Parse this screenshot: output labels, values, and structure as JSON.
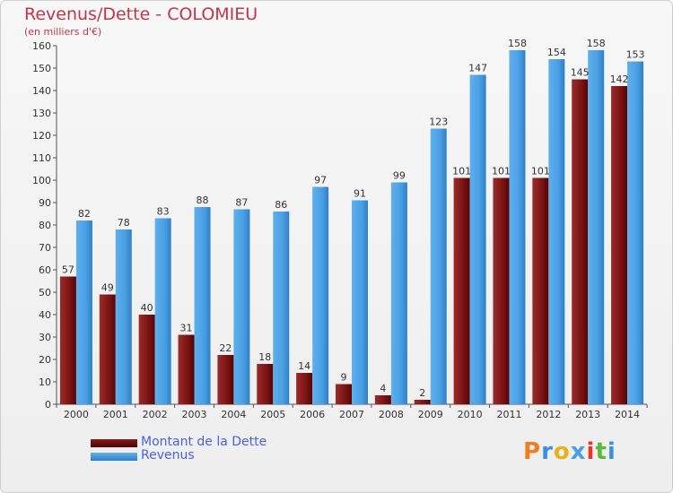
{
  "header": {
    "title": "Revenus/Dette - COLOMIEU",
    "subtitle": "(en milliers d'€)"
  },
  "legend": {
    "debt_label": "Montant de la Dette",
    "revenue_label": "Revenus"
  },
  "logo": {
    "text": "Proxiti",
    "colors": [
      "#f07c1e",
      "#3d8fe0",
      "#e8b01a",
      "#4a9ee8",
      "#e23a2a",
      "#5cb83a",
      "#3d8fe0"
    ]
  },
  "colors": {
    "debt": "#8b1a1a",
    "debt_dark": "#5a0606",
    "revenue": "#4fa3e6",
    "revenue_dark": "#2e7fc4",
    "axis_text": "#333333",
    "title": "#c2334d"
  },
  "chart_data": {
    "type": "bar",
    "categories": [
      "2000",
      "2001",
      "2002",
      "2003",
      "2004",
      "2005",
      "2006",
      "2007",
      "2008",
      "2009",
      "2010",
      "2011",
      "2012",
      "2013",
      "2014"
    ],
    "series": [
      {
        "name": "Montant de la Dette",
        "values": [
          57,
          49,
          40,
          31,
          22,
          18,
          14,
          9,
          4,
          2,
          101,
          101,
          101,
          145,
          142
        ]
      },
      {
        "name": "Revenus",
        "values": [
          82,
          78,
          83,
          88,
          87,
          86,
          97,
          91,
          99,
          123,
          147,
          158,
          154,
          158,
          153
        ]
      }
    ],
    "ylim": [
      0,
      160
    ],
    "yticks": [
      0,
      10,
      20,
      30,
      40,
      50,
      60,
      70,
      80,
      90,
      100,
      110,
      120,
      130,
      140,
      150,
      160
    ],
    "grid": false,
    "legend_position": "bottom-left"
  }
}
